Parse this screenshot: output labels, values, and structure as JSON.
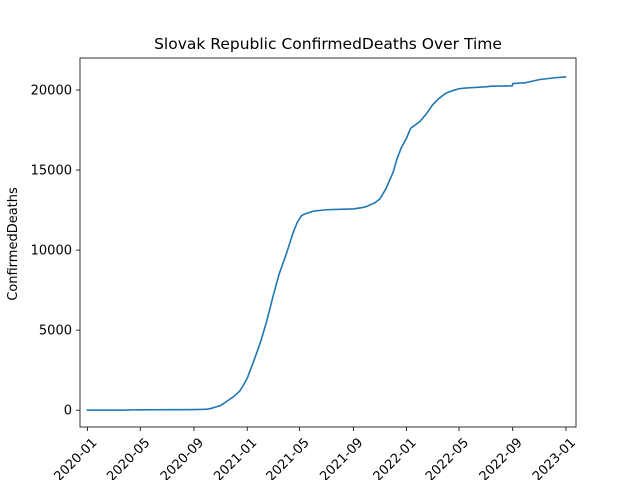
{
  "chart_data": {
    "type": "line",
    "title": "Slovak Republic  ConfirmedDeaths Over Time",
    "xlabel": "",
    "ylabel": "ConfirmedDeaths",
    "xlim": [
      "2019-12-15",
      "2023-01-24"
    ],
    "ylim": [
      -1050,
      22000
    ],
    "grid": false,
    "x_ticks": [
      "2020-01",
      "2020-05",
      "2020-09",
      "2021-01",
      "2021-05",
      "2021-09",
      "2022-01",
      "2022-05",
      "2022-09",
      "2023-01"
    ],
    "y_ticks": [
      0,
      5000,
      10000,
      15000,
      20000
    ],
    "series": [
      {
        "color": "#1f77b4",
        "points": [
          [
            "2020-01-01",
            0
          ],
          [
            "2020-02-01",
            0
          ],
          [
            "2020-03-15",
            0
          ],
          [
            "2020-04-15",
            20
          ],
          [
            "2020-05-01",
            25
          ],
          [
            "2020-06-01",
            28
          ],
          [
            "2020-07-01",
            29
          ],
          [
            "2020-08-01",
            31
          ],
          [
            "2020-09-01",
            38
          ],
          [
            "2020-09-20",
            50
          ],
          [
            "2020-10-01",
            60
          ],
          [
            "2020-10-10",
            110
          ],
          [
            "2020-10-20",
            190
          ],
          [
            "2020-11-01",
            290
          ],
          [
            "2020-11-15",
            550
          ],
          [
            "2020-12-01",
            850
          ],
          [
            "2020-12-15",
            1200
          ],
          [
            "2020-12-25",
            1650
          ],
          [
            "2021-01-01",
            2000
          ],
          [
            "2021-01-15",
            3000
          ],
          [
            "2021-02-01",
            4300
          ],
          [
            "2021-02-15",
            5600
          ],
          [
            "2021-03-01",
            7100
          ],
          [
            "2021-03-15",
            8500
          ],
          [
            "2021-04-01",
            9800
          ],
          [
            "2021-04-15",
            11000
          ],
          [
            "2021-04-25",
            11700
          ],
          [
            "2021-05-05",
            12150
          ],
          [
            "2021-05-15",
            12280
          ],
          [
            "2021-06-01",
            12430
          ],
          [
            "2021-07-01",
            12520
          ],
          [
            "2021-08-01",
            12550
          ],
          [
            "2021-09-01",
            12570
          ],
          [
            "2021-09-20",
            12650
          ],
          [
            "2021-10-01",
            12720
          ],
          [
            "2021-10-20",
            12950
          ],
          [
            "2021-11-01",
            13200
          ],
          [
            "2021-11-15",
            13850
          ],
          [
            "2021-12-01",
            14850
          ],
          [
            "2021-12-10",
            15700
          ],
          [
            "2021-12-20",
            16400
          ],
          [
            "2022-01-01",
            17000
          ],
          [
            "2022-01-10",
            17600
          ],
          [
            "2022-02-01",
            18050
          ],
          [
            "2022-02-15",
            18500
          ],
          [
            "2022-03-01",
            19050
          ],
          [
            "2022-03-15",
            19450
          ],
          [
            "2022-04-01",
            19800
          ],
          [
            "2022-04-15",
            19950
          ],
          [
            "2022-05-01",
            20080
          ],
          [
            "2022-05-15",
            20120
          ],
          [
            "2022-06-01",
            20150
          ],
          [
            "2022-07-01",
            20200
          ],
          [
            "2022-07-15",
            20240
          ],
          [
            "2022-08-01",
            20250
          ],
          [
            "2022-08-31",
            20260
          ],
          [
            "2022-09-01",
            20400
          ],
          [
            "2022-10-01",
            20460
          ],
          [
            "2022-11-01",
            20650
          ],
          [
            "2022-12-01",
            20750
          ],
          [
            "2022-12-31",
            20820
          ]
        ]
      }
    ]
  }
}
